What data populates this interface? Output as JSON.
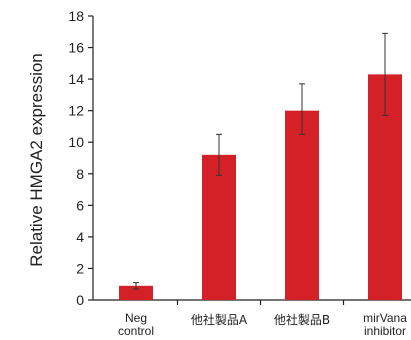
{
  "chart_data": {
    "type": "bar",
    "title": "",
    "xlabel": "",
    "ylabel": "Relative HMGA2 expression",
    "ylim": [
      0,
      18
    ],
    "yticks": [
      0,
      2,
      4,
      6,
      8,
      10,
      12,
      14,
      16,
      18
    ],
    "grid": false,
    "legend": "none",
    "bar_color": "#d42128",
    "categories": [
      [
        "Neg",
        "control"
      ],
      [
        "他社製品A"
      ],
      [
        "他社製品B"
      ],
      [
        "mirVana",
        "inhibitor"
      ]
    ],
    "category_superscripts": [
      "",
      "",
      "",
      "™"
    ],
    "values": [
      0.9,
      9.2,
      12.0,
      14.3
    ],
    "error_low": [
      0.7,
      7.9,
      10.5,
      11.7
    ],
    "error_high": [
      1.1,
      10.5,
      13.7,
      16.9
    ]
  }
}
